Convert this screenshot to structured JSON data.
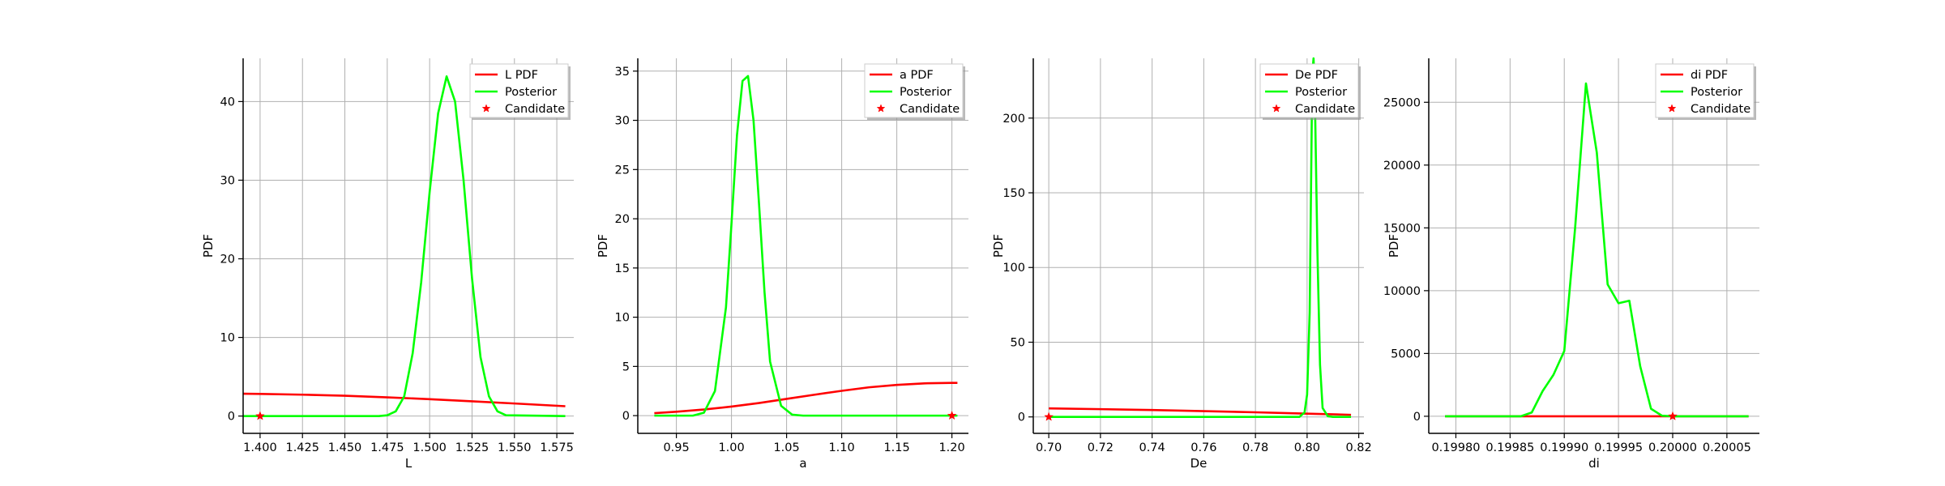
{
  "chart_data": [
    {
      "type": "line",
      "xlabel": "L",
      "ylabel": "PDF",
      "xlim": [
        1.39,
        1.585
      ],
      "ylim": [
        -2.2,
        45.5
      ],
      "xticks": [
        1.4,
        1.425,
        1.45,
        1.475,
        1.5,
        1.525,
        1.55,
        1.575
      ],
      "xtick_labels": [
        "1.400",
        "1.425",
        "1.450",
        "1.475",
        "1.500",
        "1.525",
        "1.550",
        "1.575"
      ],
      "yticks": [
        0,
        10,
        20,
        30,
        40
      ],
      "ytick_labels": [
        "0",
        "10",
        "20",
        "30",
        "40"
      ],
      "grid": true,
      "legend_position": "top-right",
      "legend": [
        "L PDF",
        "Posterior",
        "Candidate"
      ],
      "series": [
        {
          "name": "L PDF",
          "color": "#ff0000",
          "style": "line",
          "x": [
            1.385,
            1.4,
            1.425,
            1.45,
            1.475,
            1.5,
            1.525,
            1.55,
            1.58
          ],
          "y": [
            2.85,
            2.82,
            2.72,
            2.58,
            2.38,
            2.15,
            1.88,
            1.6,
            1.25
          ]
        },
        {
          "name": "Posterior",
          "color": "#00ff00",
          "style": "line",
          "x": [
            1.385,
            1.47,
            1.475,
            1.48,
            1.485,
            1.49,
            1.495,
            1.5,
            1.505,
            1.51,
            1.515,
            1.52,
            1.525,
            1.53,
            1.535,
            1.54,
            1.545,
            1.58
          ],
          "y": [
            0,
            0,
            0.1,
            0.6,
            2.5,
            8,
            17,
            28.5,
            38.5,
            43.2,
            40,
            30,
            17.5,
            7.5,
            2.5,
            0.6,
            0.1,
            0
          ]
        },
        {
          "name": "Candidate",
          "color": "#ff0000",
          "style": "star",
          "x": [
            1.4
          ],
          "y": [
            0
          ]
        }
      ]
    },
    {
      "type": "line",
      "xlabel": "a",
      "ylabel": "PDF",
      "xlim": [
        0.915,
        1.215
      ],
      "ylim": [
        -1.8,
        36.3
      ],
      "xticks": [
        0.95,
        1.0,
        1.05,
        1.1,
        1.15,
        1.2
      ],
      "xtick_labels": [
        "0.95",
        "1.00",
        "1.05",
        "1.10",
        "1.15",
        "1.20"
      ],
      "yticks": [
        0,
        5,
        10,
        15,
        20,
        25,
        30,
        35
      ],
      "ytick_labels": [
        "0",
        "5",
        "10",
        "15",
        "20",
        "25",
        "30",
        "35"
      ],
      "grid": true,
      "legend_position": "top-right",
      "legend": [
        "a PDF",
        "Posterior",
        "Candidate"
      ],
      "series": [
        {
          "name": "a PDF",
          "color": "#ff0000",
          "style": "line",
          "x": [
            0.93,
            0.95,
            0.975,
            1.0,
            1.025,
            1.05,
            1.075,
            1.1,
            1.125,
            1.15,
            1.175,
            1.2,
            1.205
          ],
          "y": [
            0.25,
            0.4,
            0.62,
            0.92,
            1.28,
            1.7,
            2.12,
            2.52,
            2.88,
            3.12,
            3.28,
            3.33,
            3.33
          ]
        },
        {
          "name": "Posterior",
          "color": "#00ff00",
          "style": "line",
          "x": [
            0.93,
            0.965,
            0.975,
            0.985,
            0.995,
            1.0,
            1.005,
            1.01,
            1.015,
            1.02,
            1.025,
            1.03,
            1.035,
            1.045,
            1.055,
            1.065,
            1.205
          ],
          "y": [
            0,
            0,
            0.3,
            2.5,
            11,
            19.5,
            28.5,
            34,
            34.5,
            30,
            21.5,
            12.5,
            5.5,
            1,
            0.1,
            0,
            0
          ]
        },
        {
          "name": "Candidate",
          "color": "#ff0000",
          "style": "star",
          "x": [
            1.2
          ],
          "y": [
            0
          ]
        }
      ]
    },
    {
      "type": "line",
      "xlabel": "De",
      "ylabel": "PDF",
      "xlim": [
        0.694,
        0.822
      ],
      "ylim": [
        -11,
        240
      ],
      "xticks": [
        0.7,
        0.72,
        0.74,
        0.76,
        0.78,
        0.8,
        0.82
      ],
      "xtick_labels": [
        "0.70",
        "0.72",
        "0.74",
        "0.76",
        "0.78",
        "0.80",
        "0.82"
      ],
      "yticks": [
        0,
        50,
        100,
        150,
        200
      ],
      "ytick_labels": [
        "0",
        "50",
        "100",
        "150",
        "200"
      ],
      "grid": true,
      "legend_position": "top-right",
      "legend": [
        "De PDF",
        "Posterior",
        "Candidate"
      ],
      "series": [
        {
          "name": "De PDF",
          "color": "#ff0000",
          "style": "line",
          "x": [
            0.7,
            0.72,
            0.74,
            0.76,
            0.78,
            0.8,
            0.817
          ],
          "y": [
            5.7,
            5.2,
            4.6,
            3.9,
            3.1,
            2.2,
            1.4
          ]
        },
        {
          "name": "Posterior",
          "color": "#00ff00",
          "style": "line",
          "x": [
            0.7,
            0.797,
            0.799,
            0.8,
            0.801,
            0.8015,
            0.802,
            0.8025,
            0.803,
            0.804,
            0.805,
            0.806,
            0.808,
            0.81,
            0.817
          ],
          "y": [
            0,
            0,
            3,
            15,
            70,
            150,
            230,
            240,
            215,
            110,
            35,
            6,
            0.5,
            0,
            0
          ]
        },
        {
          "name": "Candidate",
          "color": "#ff0000",
          "style": "star",
          "x": [
            0.7
          ],
          "y": [
            0
          ]
        }
      ]
    },
    {
      "type": "line",
      "xlabel": "di",
      "ylabel": "PDF",
      "xlim": [
        0.199775,
        0.20008
      ],
      "ylim": [
        -1360,
        28500
      ],
      "xticks": [
        0.1998,
        0.19985,
        0.1999,
        0.19995,
        0.2,
        0.20005
      ],
      "xtick_labels": [
        "0.19980",
        "0.19985",
        "0.19990",
        "0.19995",
        "0.20000",
        "0.20005"
      ],
      "yticks": [
        0,
        5000,
        10000,
        15000,
        20000,
        25000
      ],
      "ytick_labels": [
        "0",
        "5000",
        "10000",
        "15000",
        "20000",
        "25000"
      ],
      "grid": true,
      "legend_position": "top-right",
      "legend": [
        "di PDF",
        "Posterior",
        "Candidate"
      ],
      "series": [
        {
          "name": "di PDF",
          "color": "#ff0000",
          "style": "line",
          "x": [
            0.19979,
            0.20007
          ],
          "y": [
            0,
            0
          ]
        },
        {
          "name": "Posterior",
          "color": "#00ff00",
          "style": "line",
          "x": [
            0.19979,
            0.19986,
            0.19987,
            0.19988,
            0.19989,
            0.1999,
            0.19991,
            0.19992,
            0.19993,
            0.19994,
            0.19995,
            0.19996,
            0.19997,
            0.19998,
            0.19999,
            0.2,
            0.20007
          ],
          "y": [
            0,
            0,
            300,
            2000,
            3300,
            5200,
            15000,
            26500,
            21000,
            10500,
            9000,
            9200,
            4000,
            600,
            50,
            0,
            0
          ]
        },
        {
          "name": "Candidate",
          "color": "#ff0000",
          "style": "star",
          "x": [
            0.2
          ],
          "y": [
            0
          ]
        }
      ]
    }
  ]
}
